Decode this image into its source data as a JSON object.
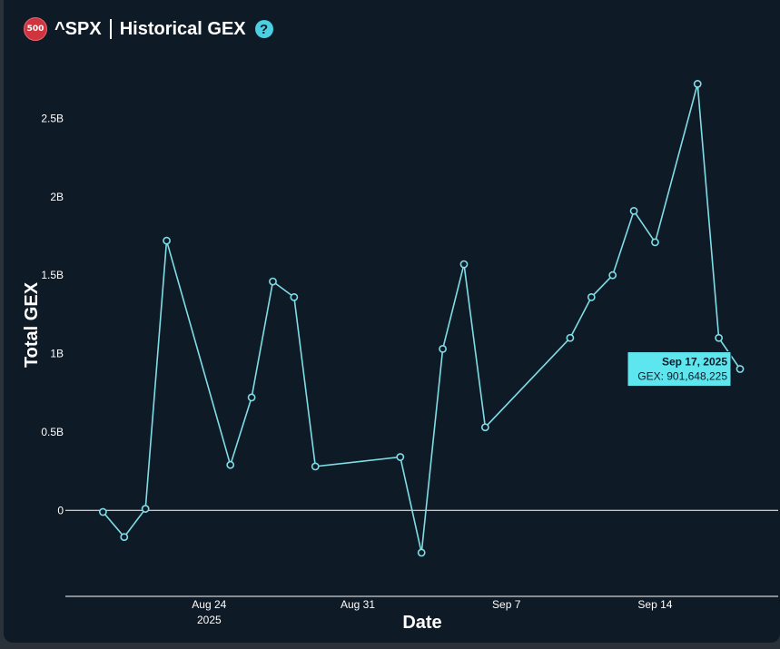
{
  "header": {
    "badge": "500",
    "ticker": "^SPX",
    "title": "Historical GEX",
    "help_icon": "question-circle-icon"
  },
  "colors": {
    "background": "#0f1a27",
    "line": "#7fdde6",
    "text": "#ffffff",
    "badge": "#d0343f",
    "help": "#4ccfe0",
    "tooltip_bg": "#5ee6ef"
  },
  "chart_data": {
    "type": "line",
    "title": "Historical GEX",
    "xlabel": "Date",
    "ylabel": "Total GEX",
    "ylim": [
      -0.45,
      2.85
    ],
    "yunit": "B",
    "yticks": [
      {
        "value": 0,
        "label": "0"
      },
      {
        "value": 0.5,
        "label": "0.5B"
      },
      {
        "value": 1,
        "label": "1B"
      },
      {
        "value": 1.5,
        "label": "1.5B"
      },
      {
        "value": 2,
        "label": "2B"
      },
      {
        "value": 2.5,
        "label": "2.5B"
      }
    ],
    "xlim": [
      "2025-08-18",
      "2025-09-18"
    ],
    "xticks": [
      {
        "date": "2025-08-24",
        "label": "Aug 24",
        "sublabel": "2025"
      },
      {
        "date": "2025-08-31",
        "label": "Aug 31",
        "sublabel": ""
      },
      {
        "date": "2025-09-07",
        "label": "Sep 7",
        "sublabel": ""
      },
      {
        "date": "2025-09-14",
        "label": "Sep 14",
        "sublabel": ""
      }
    ],
    "grid": false,
    "series": [
      {
        "points": [
          {
            "x": "2025-08-19",
            "y": -0.01
          },
          {
            "x": "2025-08-20",
            "y": -0.17
          },
          {
            "x": "2025-08-21",
            "y": 0.01
          },
          {
            "x": "2025-08-22",
            "y": 1.72
          },
          {
            "x": "2025-08-25",
            "y": 0.29
          },
          {
            "x": "2025-08-26",
            "y": 0.72
          },
          {
            "x": "2025-08-27",
            "y": 1.46
          },
          {
            "x": "2025-08-28",
            "y": 1.36
          },
          {
            "x": "2025-08-29",
            "y": 0.28
          },
          {
            "x": "2025-09-02",
            "y": 0.34
          },
          {
            "x": "2025-09-03",
            "y": -0.27
          },
          {
            "x": "2025-09-04",
            "y": 1.03
          },
          {
            "x": "2025-09-05",
            "y": 1.57
          },
          {
            "x": "2025-09-06",
            "y": 0.53
          },
          {
            "x": "2025-09-10",
            "y": 1.1
          },
          {
            "x": "2025-09-11",
            "y": 1.36
          },
          {
            "x": "2025-09-12",
            "y": 1.5
          },
          {
            "x": "2025-09-13",
            "y": 1.91
          },
          {
            "x": "2025-09-14",
            "y": 1.71
          },
          {
            "x": "2025-09-16",
            "y": 2.72
          },
          {
            "x": "2025-09-17",
            "y": 1.1
          },
          {
            "x": "2025-09-18",
            "y": 0.901648225
          }
        ]
      }
    ],
    "tooltip": {
      "date": "Sep 17, 2025",
      "value_text": "GEX: 901,648,225"
    }
  }
}
